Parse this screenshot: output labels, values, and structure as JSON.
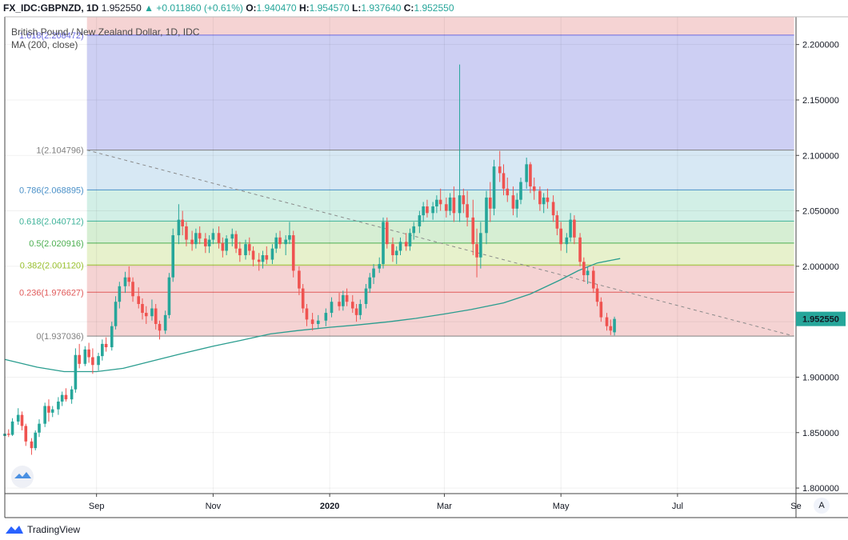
{
  "header": {
    "symbol": "FX_IDC:GBPNZD, 1D",
    "price": "1.952550",
    "change": "+0.011860 (+0.61%)",
    "o_label": "O:",
    "o_value": "1.940470",
    "h_label": "H:",
    "h_value": "1.954570",
    "l_label": "L:",
    "l_value": "1.937640",
    "c_label": "C:",
    "c_value": "1.952550"
  },
  "footer": {
    "brand": "TradingView"
  },
  "scale_button": "A",
  "colors": {
    "up": "#26a69a",
    "down": "#ef5350",
    "ma": "#2a9d8f",
    "trend": "#8a8a8a"
  },
  "chart_data": {
    "type": "candlestick",
    "title": "British Pound / New Zealand Dollar, 1D, IDC",
    "indicator_label": "MA (200, close)",
    "price_label": "1.952550",
    "ylim": [
      1.795,
      2.225
    ],
    "x_range": [
      "2019-07-15",
      "2020-09-01"
    ],
    "y_ticks": [
      "2.200000",
      "2.150000",
      "2.100000",
      "2.050000",
      "2.000000",
      "1.950000",
      "1.900000",
      "1.850000",
      "1.800000"
    ],
    "y_tick_values": [
      2.2,
      2.15,
      2.1,
      2.05,
      2.0,
      1.95,
      1.9,
      1.85,
      1.8
    ],
    "x_ticks": [
      {
        "label": "Sep",
        "date": "2019-09-01"
      },
      {
        "label": "Nov",
        "date": "2019-11-01"
      },
      {
        "label": "2020",
        "date": "2020-01-01"
      },
      {
        "label": "Mar",
        "date": "2020-03-01"
      },
      {
        "label": "May",
        "date": "2020-05-01"
      },
      {
        "label": "Jul",
        "date": "2020-07-01"
      },
      {
        "label": "Se",
        "date": "2020-09-01"
      }
    ],
    "fibonacci": {
      "start_date": "2019-08-27",
      "end_date": "2020-08-31",
      "levels": [
        {
          "label": "1.618(2.208472)",
          "level": "1.618",
          "value": 2.208472,
          "color": "#6a6ae0",
          "fill": "#cdcff3"
        },
        {
          "label": "1(2.104796)",
          "level": "1",
          "value": 2.104796,
          "color": "#808080",
          "fill": "#e6e6e6"
        },
        {
          "label": "0.786(2.068895)",
          "level": "0.786",
          "value": 2.068895,
          "color": "#4a90c8",
          "fill": "#d7e8f4"
        },
        {
          "label": "0.618(2.040712)",
          "level": "0.618",
          "value": 2.040712,
          "color": "#3fb39a",
          "fill": "#d2efe6"
        },
        {
          "label": "0.5(2.020916)",
          "level": "0.5",
          "value": 2.020916,
          "color": "#4caf50",
          "fill": "#d6eed3"
        },
        {
          "label": "0.382(2.001120)",
          "level": "0.382",
          "value": 2.00112,
          "color": "#9ac22e",
          "fill": "#e7f1cc"
        },
        {
          "label": "0.236(1.976627)",
          "level": "0.236",
          "value": 1.976627,
          "color": "#e05a5a",
          "fill": "#f5d3d3"
        },
        {
          "label": "0(1.937036)",
          "level": "0",
          "value": 1.937036,
          "color": "#808080",
          "fill": "#f5d3d3"
        }
      ],
      "top_fill": "#f5d3d3"
    },
    "trendline": {
      "from": {
        "date": "2019-08-27",
        "value": 2.1048
      },
      "to": {
        "date": "2020-08-31",
        "value": 1.937
      }
    },
    "ma200": [
      [
        "2019-07-15",
        1.916
      ],
      [
        "2019-08-01",
        1.909
      ],
      [
        "2019-08-15",
        1.905
      ],
      [
        "2019-09-01",
        1.905
      ],
      [
        "2019-09-15",
        1.908
      ],
      [
        "2019-10-01",
        1.915
      ],
      [
        "2019-10-15",
        1.921
      ],
      [
        "2019-11-01",
        1.928
      ],
      [
        "2019-11-15",
        1.933
      ],
      [
        "2019-12-01",
        1.939
      ],
      [
        "2019-12-15",
        1.942
      ],
      [
        "2020-01-01",
        1.945
      ],
      [
        "2020-01-15",
        1.947
      ],
      [
        "2020-02-01",
        1.95
      ],
      [
        "2020-02-15",
        1.953
      ],
      [
        "2020-03-01",
        1.957
      ],
      [
        "2020-03-15",
        1.961
      ],
      [
        "2020-04-01",
        1.967
      ],
      [
        "2020-04-15",
        1.975
      ],
      [
        "2020-05-01",
        1.988
      ],
      [
        "2020-05-10",
        1.996
      ],
      [
        "2020-05-20",
        2.003
      ],
      [
        "2020-06-01",
        2.007
      ]
    ],
    "candles": [
      [
        "2019-07-15",
        1.847,
        1.851,
        1.845,
        1.849
      ],
      [
        "2019-07-17",
        1.849,
        1.853,
        1.846,
        1.848
      ],
      [
        "2019-07-19",
        1.848,
        1.863,
        1.847,
        1.86
      ],
      [
        "2019-07-22",
        1.86,
        1.872,
        1.857,
        1.866
      ],
      [
        "2019-07-24",
        1.866,
        1.869,
        1.852,
        1.856
      ],
      [
        "2019-07-26",
        1.856,
        1.858,
        1.838,
        1.842
      ],
      [
        "2019-07-29",
        1.842,
        1.845,
        1.83,
        1.836
      ],
      [
        "2019-07-31",
        1.836,
        1.852,
        1.834,
        1.85
      ],
      [
        "2019-08-02",
        1.85,
        1.862,
        1.846,
        1.858
      ],
      [
        "2019-08-05",
        1.858,
        1.877,
        1.855,
        1.874
      ],
      [
        "2019-08-07",
        1.874,
        1.88,
        1.86,
        1.868
      ],
      [
        "2019-08-09",
        1.868,
        1.874,
        1.864,
        1.871
      ],
      [
        "2019-08-12",
        1.871,
        1.882,
        1.866,
        1.878
      ],
      [
        "2019-08-14",
        1.878,
        1.887,
        1.874,
        1.884
      ],
      [
        "2019-08-16",
        1.884,
        1.89,
        1.878,
        1.88
      ],
      [
        "2019-08-19",
        1.88,
        1.892,
        1.876,
        1.889
      ],
      [
        "2019-08-21",
        1.889,
        1.926,
        1.886,
        1.92
      ],
      [
        "2019-08-23",
        1.92,
        1.93,
        1.908,
        1.912
      ],
      [
        "2019-08-26",
        1.912,
        1.928,
        1.91,
        1.925
      ],
      [
        "2019-08-28",
        1.925,
        1.931,
        1.913,
        1.918
      ],
      [
        "2019-08-30",
        1.918,
        1.926,
        1.903,
        1.911
      ],
      [
        "2019-09-02",
        1.911,
        1.922,
        1.906,
        1.919
      ],
      [
        "2019-09-04",
        1.919,
        1.934,
        1.915,
        1.93
      ],
      [
        "2019-09-06",
        1.93,
        1.936,
        1.923,
        1.927
      ],
      [
        "2019-09-09",
        1.927,
        1.95,
        1.924,
        1.946
      ],
      [
        "2019-09-11",
        1.946,
        1.973,
        1.943,
        1.968
      ],
      [
        "2019-09-13",
        1.968,
        1.986,
        1.962,
        1.982
      ],
      [
        "2019-09-16",
        1.982,
        1.995,
        1.976,
        1.99
      ],
      [
        "2019-09-18",
        1.99,
        2.0,
        1.982,
        1.986
      ],
      [
        "2019-09-20",
        1.986,
        1.99,
        1.968,
        1.973
      ],
      [
        "2019-09-23",
        1.973,
        1.981,
        1.962,
        1.966
      ],
      [
        "2019-09-25",
        1.966,
        1.971,
        1.952,
        1.958
      ],
      [
        "2019-09-27",
        1.958,
        1.964,
        1.948,
        1.955
      ],
      [
        "2019-09-30",
        1.955,
        1.97,
        1.951,
        1.962
      ],
      [
        "2019-10-02",
        1.962,
        1.966,
        1.943,
        1.948
      ],
      [
        "2019-10-04",
        1.948,
        1.951,
        1.934,
        1.942
      ],
      [
        "2019-10-07",
        1.942,
        1.96,
        1.939,
        1.956
      ],
      [
        "2019-10-09",
        1.956,
        1.994,
        1.953,
        1.99
      ],
      [
        "2019-10-11",
        1.99,
        2.034,
        1.986,
        2.028
      ],
      [
        "2019-10-14",
        2.028,
        2.056,
        2.02,
        2.042
      ],
      [
        "2019-10-16",
        2.042,
        2.05,
        2.028,
        2.036
      ],
      [
        "2019-10-18",
        2.036,
        2.04,
        2.018,
        2.024
      ],
      [
        "2019-10-21",
        2.024,
        2.032,
        2.014,
        2.02
      ],
      [
        "2019-10-23",
        2.02,
        2.034,
        2.016,
        2.03
      ],
      [
        "2019-10-25",
        2.03,
        2.036,
        2.02,
        2.025
      ],
      [
        "2019-10-28",
        2.025,
        2.03,
        2.012,
        2.018
      ],
      [
        "2019-10-30",
        2.018,
        2.028,
        2.012,
        2.024
      ],
      [
        "2019-11-01",
        2.024,
        2.034,
        2.02,
        2.03
      ],
      [
        "2019-11-04",
        2.03,
        2.036,
        2.016,
        2.021
      ],
      [
        "2019-11-06",
        2.021,
        2.026,
        2.008,
        2.014
      ],
      [
        "2019-11-08",
        2.014,
        2.028,
        2.01,
        2.025
      ],
      [
        "2019-11-11",
        2.025,
        2.034,
        2.018,
        2.029
      ],
      [
        "2019-11-13",
        2.029,
        2.032,
        2.012,
        2.016
      ],
      [
        "2019-11-15",
        2.016,
        2.022,
        2.004,
        2.01
      ],
      [
        "2019-11-18",
        2.01,
        2.024,
        2.006,
        2.02
      ],
      [
        "2019-11-20",
        2.02,
        2.026,
        2.01,
        2.014
      ],
      [
        "2019-11-22",
        2.014,
        2.018,
        2.0,
        2.006
      ],
      [
        "2019-11-25",
        2.006,
        2.012,
        1.996,
        2.004
      ],
      [
        "2019-11-27",
        2.004,
        2.014,
        1.998,
        2.01
      ],
      [
        "2019-11-29",
        2.01,
        2.018,
        2.002,
        2.006
      ],
      [
        "2019-12-02",
        2.006,
        2.02,
        2.002,
        2.016
      ],
      [
        "2019-12-04",
        2.016,
        2.03,
        2.012,
        2.026
      ],
      [
        "2019-12-06",
        2.026,
        2.032,
        2.016,
        2.02
      ],
      [
        "2019-12-09",
        2.02,
        2.028,
        2.01,
        2.024
      ],
      [
        "2019-12-11",
        2.024,
        2.04,
        2.02,
        2.028
      ],
      [
        "2019-12-13",
        2.028,
        2.032,
        1.99,
        1.996
      ],
      [
        "2019-12-16",
        1.996,
        2.0,
        1.974,
        1.98
      ],
      [
        "2019-12-18",
        1.98,
        1.984,
        1.958,
        1.962
      ],
      [
        "2019-12-20",
        1.962,
        1.966,
        1.946,
        1.952
      ],
      [
        "2019-12-23",
        1.952,
        1.958,
        1.942,
        1.948
      ],
      [
        "2019-12-26",
        1.948,
        1.956,
        1.944,
        1.951
      ],
      [
        "2019-12-30",
        1.951,
        1.962,
        1.946,
        1.958
      ],
      [
        "2020-01-02",
        1.958,
        1.972,
        1.954,
        1.968
      ],
      [
        "2020-01-06",
        1.968,
        1.976,
        1.96,
        1.964
      ],
      [
        "2020-01-08",
        1.964,
        1.978,
        1.96,
        1.974
      ],
      [
        "2020-01-10",
        1.974,
        1.98,
        1.964,
        1.968
      ],
      [
        "2020-01-13",
        1.968,
        1.974,
        1.958,
        1.962
      ],
      [
        "2020-01-15",
        1.962,
        1.966,
        1.95,
        1.956
      ],
      [
        "2020-01-17",
        1.956,
        1.97,
        1.952,
        1.966
      ],
      [
        "2020-01-20",
        1.966,
        1.984,
        1.962,
        1.98
      ],
      [
        "2020-01-22",
        1.98,
        1.994,
        1.976,
        1.99
      ],
      [
        "2020-01-24",
        1.99,
        2.002,
        1.984,
        1.998
      ],
      [
        "2020-01-27",
        1.998,
        2.008,
        1.994,
        2.002
      ],
      [
        "2020-01-29",
        2.002,
        2.044,
        1.998,
        2.04
      ],
      [
        "2020-01-31",
        2.04,
        2.044,
        2.016,
        2.02
      ],
      [
        "2020-02-03",
        2.02,
        2.026,
        2.004,
        2.01
      ],
      [
        "2020-02-05",
        2.01,
        2.018,
        2.002,
        2.014
      ],
      [
        "2020-02-07",
        2.014,
        2.026,
        2.01,
        2.022
      ],
      [
        "2020-02-10",
        2.022,
        2.03,
        2.014,
        2.018
      ],
      [
        "2020-02-12",
        2.018,
        2.034,
        2.014,
        2.03
      ],
      [
        "2020-02-14",
        2.03,
        2.04,
        2.024,
        2.036
      ],
      [
        "2020-02-17",
        2.036,
        2.05,
        2.03,
        2.046
      ],
      [
        "2020-02-19",
        2.046,
        2.058,
        2.04,
        2.054
      ],
      [
        "2020-02-21",
        2.054,
        2.06,
        2.044,
        2.048
      ],
      [
        "2020-02-24",
        2.048,
        2.058,
        2.042,
        2.054
      ],
      [
        "2020-02-26",
        2.054,
        2.064,
        2.048,
        2.06
      ],
      [
        "2020-02-28",
        2.06,
        2.07,
        2.05,
        2.056
      ],
      [
        "2020-03-02",
        2.056,
        2.062,
        2.044,
        2.05
      ],
      [
        "2020-03-04",
        2.05,
        2.066,
        2.046,
        2.062
      ],
      [
        "2020-03-06",
        2.062,
        2.072,
        2.04,
        2.048
      ],
      [
        "2020-03-09",
        2.048,
        2.182,
        2.04,
        2.064
      ],
      [
        "2020-03-11",
        2.064,
        2.07,
        2.048,
        2.056
      ],
      [
        "2020-03-13",
        2.056,
        2.068,
        2.036,
        2.044
      ],
      [
        "2020-03-16",
        2.044,
        2.06,
        2.01,
        2.02
      ],
      [
        "2020-03-18",
        2.02,
        2.034,
        1.99,
        2.008
      ],
      [
        "2020-03-20",
        2.008,
        2.04,
        1.998,
        2.03
      ],
      [
        "2020-03-23",
        2.03,
        2.068,
        2.02,
        2.062
      ],
      [
        "2020-03-25",
        2.062,
        2.076,
        2.04,
        2.052
      ],
      [
        "2020-03-27",
        2.052,
        2.096,
        2.046,
        2.09
      ],
      [
        "2020-03-30",
        2.09,
        2.104,
        2.076,
        2.084
      ],
      [
        "2020-04-01",
        2.084,
        2.092,
        2.064,
        2.07
      ],
      [
        "2020-04-03",
        2.07,
        2.08,
        2.058,
        2.064
      ],
      [
        "2020-04-06",
        2.064,
        2.072,
        2.046,
        2.052
      ],
      [
        "2020-04-08",
        2.052,
        2.066,
        2.044,
        2.06
      ],
      [
        "2020-04-10",
        2.06,
        2.08,
        2.056,
        2.076
      ],
      [
        "2020-04-13",
        2.076,
        2.098,
        2.07,
        2.092
      ],
      [
        "2020-04-15",
        2.092,
        2.094,
        2.066,
        2.072
      ],
      [
        "2020-04-17",
        2.072,
        2.08,
        2.06,
        2.068
      ],
      [
        "2020-04-20",
        2.068,
        2.072,
        2.05,
        2.056
      ],
      [
        "2020-04-22",
        2.056,
        2.066,
        2.048,
        2.062
      ],
      [
        "2020-04-24",
        2.062,
        2.07,
        2.052,
        2.058
      ],
      [
        "2020-04-27",
        2.058,
        2.064,
        2.04,
        2.046
      ],
      [
        "2020-04-29",
        2.046,
        2.05,
        2.028,
        2.034
      ],
      [
        "2020-05-01",
        2.034,
        2.04,
        2.014,
        2.02
      ],
      [
        "2020-05-04",
        2.02,
        2.03,
        2.012,
        2.026
      ],
      [
        "2020-05-06",
        2.026,
        2.048,
        2.022,
        2.042
      ],
      [
        "2020-05-08",
        2.042,
        2.046,
        2.02,
        2.026
      ],
      [
        "2020-05-11",
        2.026,
        2.03,
        2.0,
        2.004
      ],
      [
        "2020-05-13",
        2.004,
        2.008,
        1.986,
        1.992
      ],
      [
        "2020-05-15",
        1.992,
        2.0,
        1.984,
        1.996
      ],
      [
        "2020-05-18",
        1.996,
        2.0,
        1.976,
        1.98
      ],
      [
        "2020-05-20",
        1.98,
        1.984,
        1.964,
        1.968
      ],
      [
        "2020-05-22",
        1.968,
        1.972,
        1.95,
        1.954
      ],
      [
        "2020-05-25",
        1.954,
        1.958,
        1.942,
        1.946
      ],
      [
        "2020-05-27",
        1.946,
        1.952,
        1.938,
        1.942
      ],
      [
        "2020-05-29",
        1.94047,
        1.95457,
        1.93764,
        1.95255
      ]
    ]
  }
}
